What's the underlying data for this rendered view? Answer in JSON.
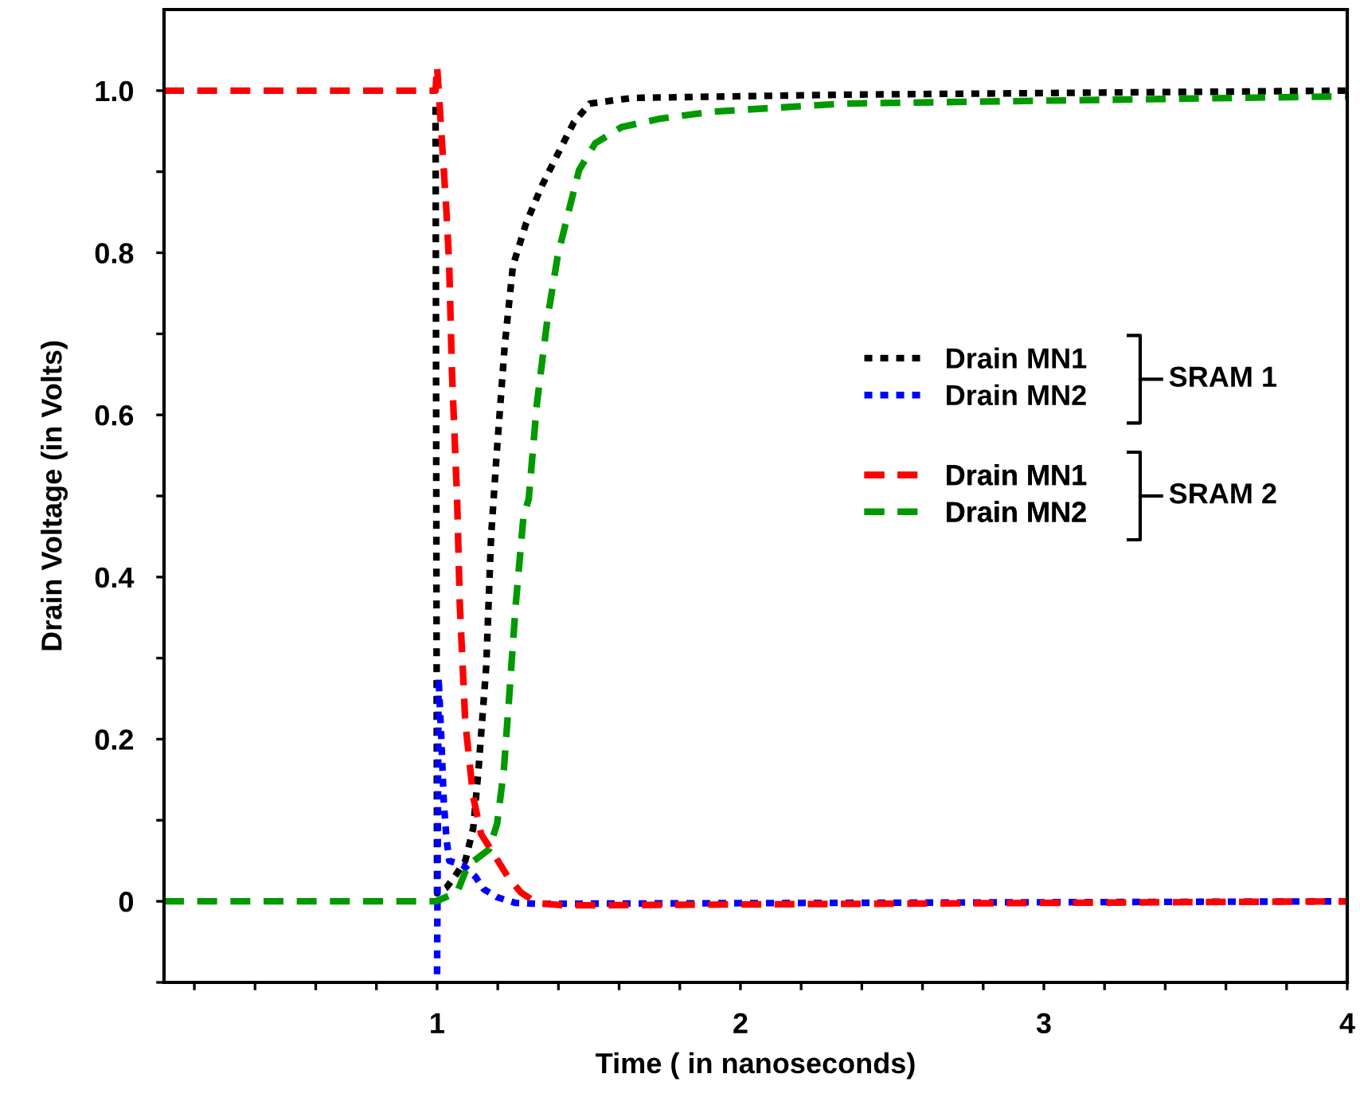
{
  "chart_data": {
    "type": "line",
    "xlabel": "Time ( in nanoseconds)",
    "ylabel": "Drain Voltage (in Volts)",
    "xlim": [
      0.1,
      4
    ],
    "xticks": [
      {
        "value": 0.2,
        "label": null
      },
      {
        "value": 0.4,
        "label": null
      },
      {
        "value": 0.6,
        "label": null
      },
      {
        "value": 0.8,
        "label": null
      },
      1,
      {
        "value": 1.2,
        "label": null
      },
      {
        "value": 1.4,
        "label": null
      },
      {
        "value": 1.6,
        "label": null
      },
      {
        "value": 1.8,
        "label": null
      },
      2,
      {
        "value": 2.2,
        "label": null
      },
      {
        "value": 2.4,
        "label": null
      },
      {
        "value": 2.6,
        "label": null
      },
      {
        "value": 2.8,
        "label": null
      },
      3,
      {
        "value": 3.2,
        "label": null
      },
      {
        "value": 3.4,
        "label": null
      },
      {
        "value": 3.6,
        "label": null
      },
      {
        "value": 3.8,
        "label": null
      },
      4
    ],
    "ylim": [
      -0.1,
      1.1
    ],
    "yticks": [
      {
        "value": -0.1,
        "label": null
      },
      0,
      {
        "value": 0.1,
        "label": null
      },
      {
        "value": 0.2,
        "label": "0.2"
      },
      {
        "value": 0.3,
        "label": null
      },
      {
        "value": 0.4,
        "label": "0.4"
      },
      {
        "value": 0.5,
        "label": null
      },
      {
        "value": 0.6,
        "label": "0.6"
      },
      {
        "value": 0.7,
        "label": null
      },
      {
        "value": 0.8,
        "label": "0.8"
      },
      {
        "value": 0.9,
        "label": null
      },
      {
        "value": 1.0,
        "label": "1.0"
      }
    ],
    "grid": false,
    "legend": "right",
    "marker": "none",
    "annotations": [
      "SRAM 1",
      "SRAM 2"
    ],
    "series": [
      {
        "name": "Drain MN1",
        "color": "#000000",
        "line_style": "dotted",
        "x": [
          0.995,
          1.0,
          1.031,
          1.057,
          1.093,
          1.119,
          1.136,
          1.162,
          1.178,
          1.197,
          1.223,
          1.25,
          1.294,
          1.346,
          1.398,
          1.451,
          1.503,
          1.643,
          2.34,
          4.0
        ],
        "values": [
          0.98,
          0.01,
          0.017,
          0.03,
          0.05,
          0.09,
          0.16,
          0.29,
          0.45,
          0.555,
          0.686,
          0.784,
          0.837,
          0.883,
          0.922,
          0.961,
          0.984,
          0.991,
          0.995,
          1.0
        ]
      },
      {
        "name": "Drain MN2",
        "color": "#0000ff",
        "line_style": "dotted",
        "x": [
          1.0,
          1.005,
          1.014,
          1.022,
          1.031,
          1.04,
          1.084,
          1.127,
          1.154,
          1.198,
          1.259,
          1.329,
          4.0
        ],
        "values": [
          -0.09,
          0.276,
          0.2,
          0.123,
          0.077,
          0.05,
          0.045,
          0.03,
          0.015,
          0.005,
          -0.002,
          -0.003,
          0.0
        ]
      },
      {
        "name": "Drain MN1",
        "color": "#ff0000",
        "line_style": "dashed",
        "x": [
          0.1,
          0.995,
          1.0,
          1.014,
          1.031,
          1.04,
          1.049,
          1.066,
          1.075,
          1.093,
          1.119,
          1.145,
          1.189,
          1.232,
          1.276,
          1.329,
          1.416,
          4.0
        ],
        "values": [
          1.0,
          1.0,
          1.03,
          0.949,
          0.85,
          0.784,
          0.653,
          0.496,
          0.365,
          0.221,
          0.129,
          0.083,
          0.057,
          0.031,
          0.011,
          -0.002,
          -0.005,
          0.0
        ]
      },
      {
        "name": "Drain MN2",
        "color": "#009900",
        "line_style": "dashed",
        "x": [
          0.1,
          0.996,
          1.066,
          1.101,
          1.171,
          1.198,
          1.22,
          1.238,
          1.259,
          1.285,
          1.302,
          1.329,
          1.364,
          1.398,
          1.433,
          1.468,
          1.521,
          1.608,
          1.73,
          1.906,
          2.34,
          4.0
        ],
        "values": [
          0.0,
          0.0,
          0.011,
          0.044,
          0.064,
          0.096,
          0.162,
          0.254,
          0.365,
          0.476,
          0.496,
          0.614,
          0.719,
          0.797,
          0.85,
          0.902,
          0.935,
          0.955,
          0.965,
          0.974,
          0.984,
          0.993
        ]
      }
    ]
  }
}
